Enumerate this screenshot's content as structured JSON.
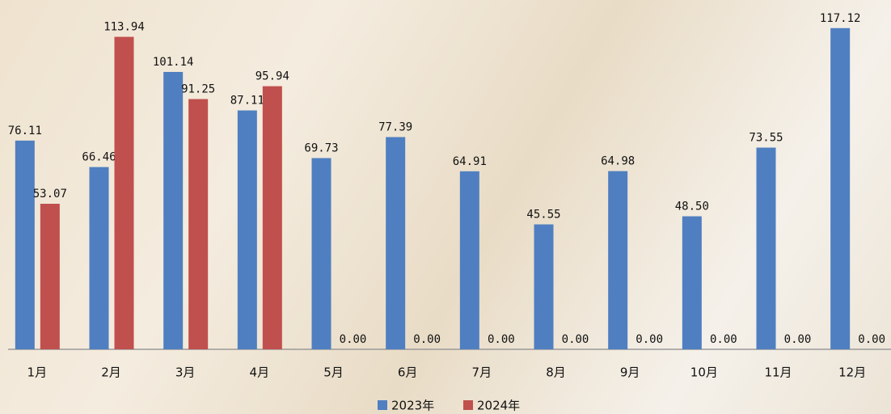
{
  "chart_data": {
    "type": "bar",
    "categories": [
      "1月",
      "2月",
      "3月",
      "4月",
      "5月",
      "6月",
      "7月",
      "8月",
      "9月",
      "10月",
      "11月",
      "12月"
    ],
    "series": [
      {
        "name": "2023年",
        "color": "#4f7fc1",
        "values": [
          76.11,
          66.46,
          101.14,
          87.11,
          69.73,
          77.39,
          64.91,
          45.55,
          64.98,
          48.5,
          73.55,
          117.12
        ],
        "value_labels": [
          "76.11",
          "66.46",
          "101.14",
          "87.11",
          "69.73",
          "77.39",
          "64.91",
          "45.55",
          "64.98",
          "48.50",
          "73.55",
          "117.12"
        ]
      },
      {
        "name": "2024年",
        "color": "#c0504d",
        "values": [
          53.07,
          113.94,
          91.25,
          95.94,
          0,
          0,
          0,
          0,
          0,
          0,
          0,
          0
        ],
        "value_labels": [
          "53.07",
          "113.94",
          "91.25",
          "95.94",
          "0.00",
          "0.00",
          "0.00",
          "0.00",
          "0.00",
          "0.00",
          "0.00",
          "0.00"
        ]
      }
    ],
    "ylim": [
      0,
      120
    ],
    "legend": "bottom"
  }
}
